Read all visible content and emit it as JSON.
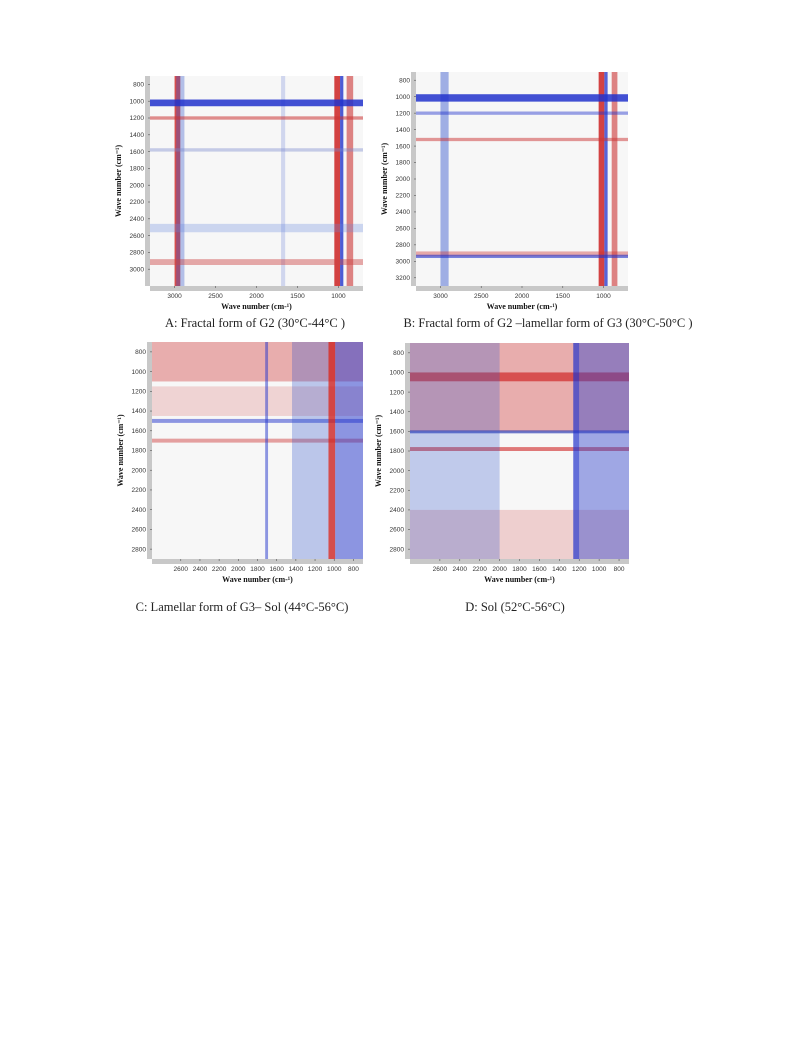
{
  "chart_data": [
    {
      "type": "heatmap",
      "panel": "A",
      "caption": "A: Fractal form of G2 (30°C-44°C )",
      "xlabel": "Wave number (cm-¹)",
      "ylabel": "Wave number (cm⁻¹)",
      "x_range": [
        3300,
        700
      ],
      "y_range": [
        700,
        3200
      ],
      "x_ticks": [
        "3000",
        "2500",
        "2000",
        "1500",
        "1000"
      ],
      "x_tick_values": [
        3000,
        2500,
        2000,
        1500,
        1000
      ],
      "y_ticks": [
        "800",
        "1000",
        "1200",
        "1400",
        "1600",
        "1800",
        "2000",
        "2200",
        "2400",
        "2600",
        "2800",
        "3000"
      ],
      "y_tick_values": [
        800,
        1000,
        1200,
        1400,
        1600,
        1800,
        2000,
        2200,
        2400,
        2600,
        2800,
        3000
      ],
      "bands": [
        {
          "axis": "x",
          "from": 3000,
          "to": 2930,
          "color": "#cc2222",
          "opacity": 0.8
        },
        {
          "axis": "x",
          "from": 2980,
          "to": 2880,
          "color": "#3355cc",
          "opacity": 0.35
        },
        {
          "axis": "x",
          "from": 1050,
          "to": 980,
          "color": "#cc2222",
          "opacity": 0.85
        },
        {
          "axis": "x",
          "from": 980,
          "to": 940,
          "color": "#2233cc",
          "opacity": 0.8
        },
        {
          "axis": "x",
          "from": 900,
          "to": 820,
          "color": "#cc3333",
          "opacity": 0.6
        },
        {
          "axis": "x",
          "from": 1700,
          "to": 1650,
          "color": "#8899dd",
          "opacity": 0.35
        },
        {
          "axis": "y",
          "from": 980,
          "to": 1060,
          "color": "#2233cc",
          "opacity": 0.85
        },
        {
          "axis": "y",
          "from": 1180,
          "to": 1220,
          "color": "#cc3333",
          "opacity": 0.55
        },
        {
          "axis": "y",
          "from": 1560,
          "to": 1600,
          "color": "#7788cc",
          "opacity": 0.4
        },
        {
          "axis": "y",
          "from": 2880,
          "to": 2950,
          "color": "#cc4444",
          "opacity": 0.45
        },
        {
          "axis": "y",
          "from": 2460,
          "to": 2560,
          "color": "#6688dd",
          "opacity": 0.3
        }
      ]
    },
    {
      "type": "heatmap",
      "panel": "B",
      "caption": "B: Fractal form of G2 –lamellar form of G3 (30°C-50°C )",
      "xlabel": "Wave number (cm-¹)",
      "ylabel": "Wave number (cm⁻¹)",
      "x_range": [
        3300,
        700
      ],
      "y_range": [
        700,
        3300
      ],
      "x_ticks": [
        "3000",
        "2500",
        "2000",
        "1500",
        "1000"
      ],
      "x_tick_values": [
        3000,
        2500,
        2000,
        1500,
        1000
      ],
      "y_ticks": [
        "800",
        "1000",
        "1200",
        "1400",
        "1600",
        "1800",
        "2000",
        "2200",
        "2400",
        "2600",
        "2800",
        "3000",
        "3200"
      ],
      "y_tick_values": [
        800,
        1000,
        1200,
        1400,
        1600,
        1800,
        2000,
        2200,
        2400,
        2600,
        2800,
        3000,
        3200
      ],
      "bands": [
        {
          "axis": "x",
          "from": 3000,
          "to": 2900,
          "color": "#3355cc",
          "opacity": 0.45
        },
        {
          "axis": "x",
          "from": 1060,
          "to": 990,
          "color": "#cc2222",
          "opacity": 0.85
        },
        {
          "axis": "x",
          "from": 990,
          "to": 950,
          "color": "#2233cc",
          "opacity": 0.75
        },
        {
          "axis": "x",
          "from": 900,
          "to": 830,
          "color": "#cc3333",
          "opacity": 0.6
        },
        {
          "axis": "y",
          "from": 970,
          "to": 1060,
          "color": "#2233cc",
          "opacity": 0.85
        },
        {
          "axis": "y",
          "from": 1180,
          "to": 1220,
          "color": "#2233cc",
          "opacity": 0.45
        },
        {
          "axis": "y",
          "from": 1500,
          "to": 1540,
          "color": "#cc3333",
          "opacity": 0.5
        },
        {
          "axis": "y",
          "from": 2880,
          "to": 2940,
          "color": "#cc3333",
          "opacity": 0.4
        },
        {
          "axis": "y",
          "from": 2920,
          "to": 2960,
          "color": "#2233cc",
          "opacity": 0.6
        }
      ]
    },
    {
      "type": "heatmap",
      "panel": "C",
      "caption": "C: Lamellar form of G3– Sol (44°C-56°C)",
      "xlabel": "Wave number (cm-¹)",
      "ylabel": "Wave number (cm⁻¹)",
      "x_range": [
        2900,
        700
      ],
      "y_range": [
        700,
        2900
      ],
      "x_ticks": [
        "2600",
        "2400",
        "2200",
        "2000",
        "1800",
        "1600",
        "1400",
        "1200",
        "1000",
        "800"
      ],
      "x_tick_values": [
        2600,
        2400,
        2200,
        2000,
        1800,
        1600,
        1400,
        1200,
        1000,
        800
      ],
      "y_ticks": [
        "800",
        "1000",
        "1200",
        "1400",
        "1600",
        "1800",
        "2000",
        "2200",
        "2400",
        "2600",
        "2800"
      ],
      "y_tick_values": [
        800,
        1000,
        1200,
        1400,
        1600,
        1800,
        2000,
        2200,
        2400,
        2600,
        2800
      ],
      "bands": [
        {
          "axis": "y",
          "from": 700,
          "to": 1100,
          "color": "#cc2222",
          "opacity": 0.35
        },
        {
          "axis": "y",
          "from": 1150,
          "to": 1450,
          "color": "#cc3333",
          "opacity": 0.18
        },
        {
          "axis": "y",
          "from": 1480,
          "to": 1520,
          "color": "#2233cc",
          "opacity": 0.5
        },
        {
          "axis": "y",
          "from": 1680,
          "to": 1720,
          "color": "#cc3333",
          "opacity": 0.45
        },
        {
          "axis": "x",
          "from": 1440,
          "to": 1060,
          "color": "#3355cc",
          "opacity": 0.3
        },
        {
          "axis": "x",
          "from": 1060,
          "to": 990,
          "color": "#cc2222",
          "opacity": 0.8
        },
        {
          "axis": "x",
          "from": 990,
          "to": 700,
          "color": "#2233cc",
          "opacity": 0.5
        },
        {
          "axis": "x",
          "from": 1720,
          "to": 1690,
          "color": "#2233cc",
          "opacity": 0.5
        }
      ]
    },
    {
      "type": "heatmap",
      "panel": "D",
      "caption": "D: Sol (52°C-56°C)",
      "xlabel": "Wave number (cm-¹)",
      "ylabel": "Wave number (cm⁻¹)",
      "x_range": [
        2900,
        700
      ],
      "y_range": [
        700,
        2900
      ],
      "x_ticks": [
        "2600",
        "2400",
        "2200",
        "2000",
        "1800",
        "1600",
        "1400",
        "1200",
        "1000",
        "800"
      ],
      "x_tick_values": [
        2600,
        2400,
        2200,
        2000,
        1800,
        1600,
        1400,
        1200,
        1000,
        800
      ],
      "y_ticks": [
        "800",
        "1000",
        "1200",
        "1400",
        "1600",
        "1800",
        "2000",
        "2200",
        "2400",
        "2600",
        "2800"
      ],
      "y_tick_values": [
        800,
        1000,
        1200,
        1400,
        1600,
        1800,
        2000,
        2200,
        2400,
        2600,
        2800
      ],
      "bands": [
        {
          "axis": "y",
          "from": 700,
          "to": 1600,
          "color": "#cc2222",
          "opacity": 0.35
        },
        {
          "axis": "y",
          "from": 1000,
          "to": 1090,
          "color": "#cc1111",
          "opacity": 0.6
        },
        {
          "axis": "y",
          "from": 1590,
          "to": 1620,
          "color": "#1122aa",
          "opacity": 0.6
        },
        {
          "axis": "y",
          "from": 1760,
          "to": 1800,
          "color": "#cc1111",
          "opacity": 0.55
        },
        {
          "axis": "y",
          "from": 2400,
          "to": 2900,
          "color": "#cc3333",
          "opacity": 0.2
        },
        {
          "axis": "x",
          "from": 2900,
          "to": 2000,
          "color": "#3355cc",
          "opacity": 0.28
        },
        {
          "axis": "x",
          "from": 1260,
          "to": 1200,
          "color": "#2233cc",
          "opacity": 0.7
        },
        {
          "axis": "x",
          "from": 1200,
          "to": 700,
          "color": "#3344cc",
          "opacity": 0.45
        }
      ]
    }
  ]
}
